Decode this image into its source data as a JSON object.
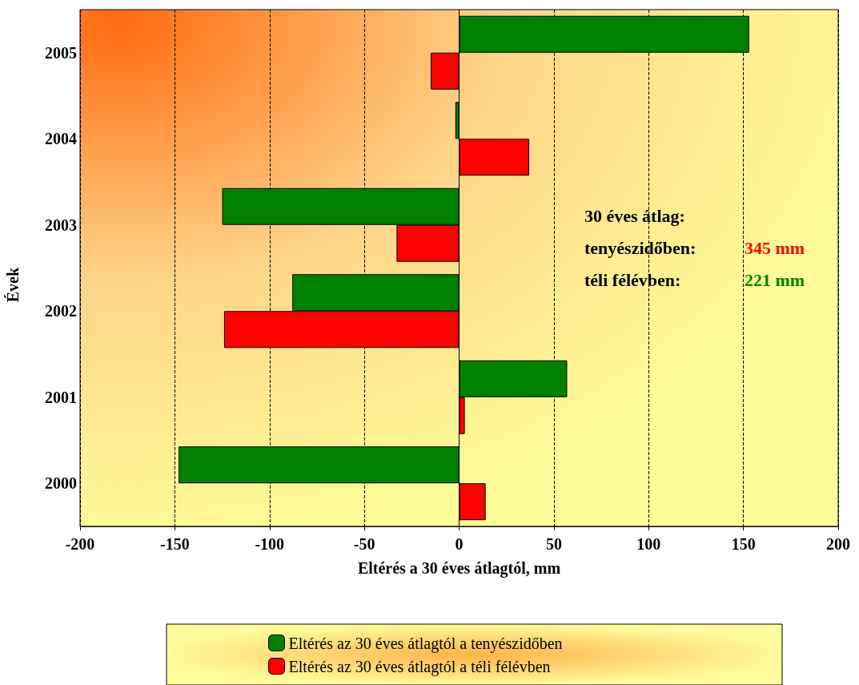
{
  "chart_data": {
    "type": "bar",
    "orientation": "horizontal",
    "xlabel": "Eltérés a 30 éves átlagtól, mm",
    "ylabel": "Évek",
    "categories": [
      "2005",
      "2004",
      "2003",
      "2002",
      "2001",
      "2000"
    ],
    "series": [
      {
        "name": "Eltérés az 30 éves átlagtól a tenyészidőben",
        "color": "#008000",
        "values": [
          153,
          -2,
          -125,
          -88,
          57,
          -148
        ]
      },
      {
        "name": "Eltérés az 30 éves átlagtól a téli félévben",
        "color": "#ff0000",
        "values": [
          -15,
          37,
          -33,
          -124,
          3,
          14
        ]
      }
    ],
    "xlim": [
      -200,
      200
    ],
    "xticks": [
      -200,
      -150,
      -100,
      -50,
      0,
      50,
      100,
      150,
      200
    ],
    "grid": "x",
    "legend": "bottom",
    "annotations": [
      "30 éves átlag:",
      "tenyészidőben:",
      "345 mm",
      "téli félévben:",
      "221 mm"
    ]
  }
}
